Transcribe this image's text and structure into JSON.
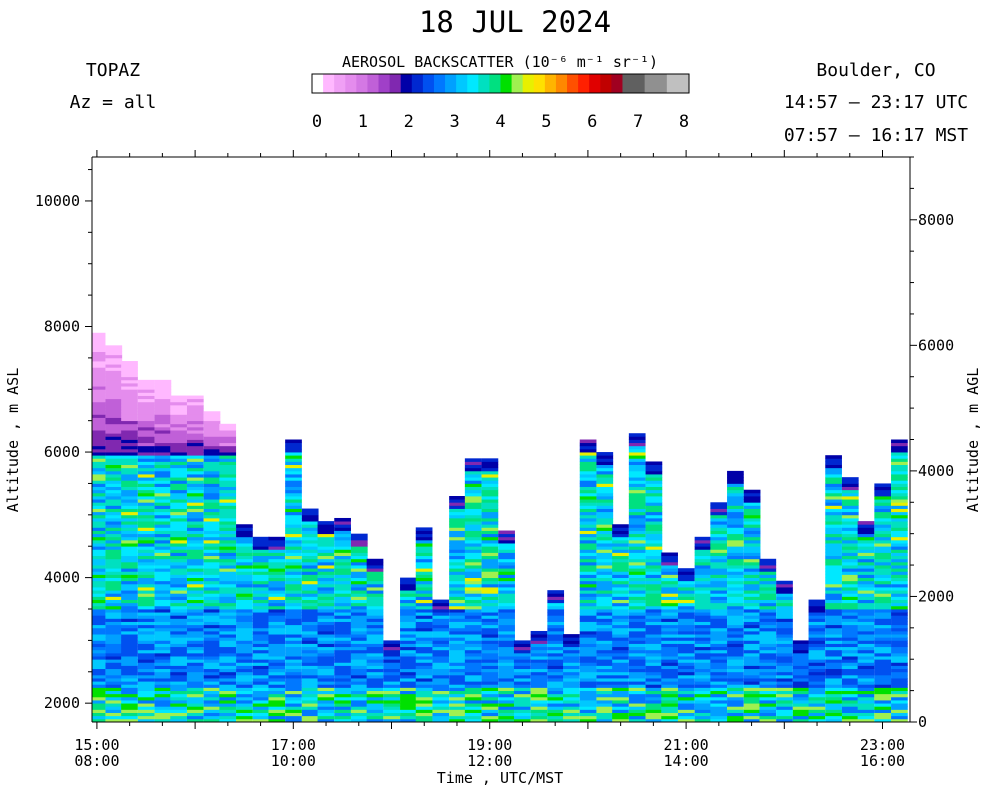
{
  "header": {
    "date": "18 JUL 2024",
    "instrument": "TOPAZ",
    "azimuth": "Az = all",
    "location": "Boulder, CO",
    "utc_range": "14:57 – 23:17 UTC",
    "mst_range": "07:57 – 16:17 MST"
  },
  "colorbar": {
    "title": "AEROSOL BACKSCATTER (10⁻⁶ m⁻¹ sr⁻¹)",
    "ticks": [
      "0",
      "1",
      "2",
      "3",
      "4",
      "5",
      "6",
      "7",
      "8"
    ],
    "colors": [
      "#ffffff",
      "#ffb8ff",
      "#f0a0f5",
      "#e48ced",
      "#d478e4",
      "#c060d8",
      "#a040c8",
      "#8028b0",
      "#0000a8",
      "#0028d0",
      "#0050f0",
      "#0078ff",
      "#00a0ff",
      "#00c8ff",
      "#00e8ff",
      "#00e0c0",
      "#00e080",
      "#00e000",
      "#a0f050",
      "#e8f000",
      "#ffe000",
      "#ffb400",
      "#ff8800",
      "#ff5000",
      "#ff2000",
      "#e00000",
      "#c00000",
      "#a00020",
      "#606060",
      "#606060",
      "#909090",
      "#909090",
      "#c0c0c0",
      "#c0c0c0"
    ]
  },
  "chart_data": {
    "type": "heatmap",
    "title": "18 JUL 2024",
    "xlabel": "Time , UTC/MST",
    "ylabel_left": "Altitude , m ASL",
    "ylabel_right": "Altitude , m AGL",
    "x_tick_labels_utc": [
      "15:00",
      "17:00",
      "19:00",
      "21:00",
      "23:00"
    ],
    "x_tick_labels_mst": [
      "08:00",
      "10:00",
      "12:00",
      "14:00",
      "16:00"
    ],
    "xlim_utc_hours": [
      14.95,
      23.28
    ],
    "ylim_asl_m": [
      1700,
      10700
    ],
    "y_ticks_asl": [
      "2000",
      "4000",
      "6000",
      "8000",
      "10000"
    ],
    "y_ticks_agl": [
      "0",
      "2000",
      "4000",
      "6000",
      "8000"
    ],
    "value_units": "10^-6 m^-1 sr^-1",
    "value_range": [
      0,
      8
    ],
    "profiles": [
      {
        "t": 15.0,
        "top": 7900
      },
      {
        "t": 15.17,
        "top": 7700
      },
      {
        "t": 15.33,
        "top": 7450
      },
      {
        "t": 15.5,
        "top": 7150
      },
      {
        "t": 15.67,
        "top": 7150
      },
      {
        "t": 15.83,
        "top": 6900
      },
      {
        "t": 16.0,
        "top": 6900
      },
      {
        "t": 16.17,
        "top": 6650
      },
      {
        "t": 16.33,
        "top": 6450
      },
      {
        "t": 16.5,
        "top": 4850
      },
      {
        "t": 16.67,
        "top": 4650
      },
      {
        "t": 16.83,
        "top": 4650
      },
      {
        "t": 17.0,
        "top": 6200
      },
      {
        "t": 17.17,
        "top": 5100
      },
      {
        "t": 17.33,
        "top": 4900
      },
      {
        "t": 17.5,
        "top": 4950
      },
      {
        "t": 17.67,
        "top": 4700
      },
      {
        "t": 17.83,
        "top": 4300
      },
      {
        "t": 18.0,
        "top": 3000
      },
      {
        "t": 18.17,
        "top": 4000
      },
      {
        "t": 18.33,
        "top": 4800
      },
      {
        "t": 18.5,
        "top": 3650
      },
      {
        "t": 18.67,
        "top": 5300
      },
      {
        "t": 18.83,
        "top": 5900
      },
      {
        "t": 19.0,
        "top": 5900
      },
      {
        "t": 19.17,
        "top": 4750
      },
      {
        "t": 19.33,
        "top": 3000
      },
      {
        "t": 19.5,
        "top": 3150
      },
      {
        "t": 19.67,
        "top": 3800
      },
      {
        "t": 19.83,
        "top": 3100
      },
      {
        "t": 20.0,
        "top": 6200
      },
      {
        "t": 20.17,
        "top": 6000
      },
      {
        "t": 20.33,
        "top": 4850
      },
      {
        "t": 20.5,
        "top": 6300
      },
      {
        "t": 20.67,
        "top": 5850
      },
      {
        "t": 20.83,
        "top": 4400
      },
      {
        "t": 21.0,
        "top": 4150
      },
      {
        "t": 21.17,
        "top": 4650
      },
      {
        "t": 21.33,
        "top": 5200
      },
      {
        "t": 21.5,
        "top": 5700
      },
      {
        "t": 21.67,
        "top": 5400
      },
      {
        "t": 21.83,
        "top": 4300
      },
      {
        "t": 22.0,
        "top": 3950
      },
      {
        "t": 22.17,
        "top": 3000
      },
      {
        "t": 22.33,
        "top": 3650
      },
      {
        "t": 22.5,
        "top": 5950
      },
      {
        "t": 22.67,
        "top": 5600
      },
      {
        "t": 22.83,
        "top": 4900
      },
      {
        "t": 23.0,
        "top": 5500
      },
      {
        "t": 23.17,
        "top": 6200
      }
    ]
  }
}
